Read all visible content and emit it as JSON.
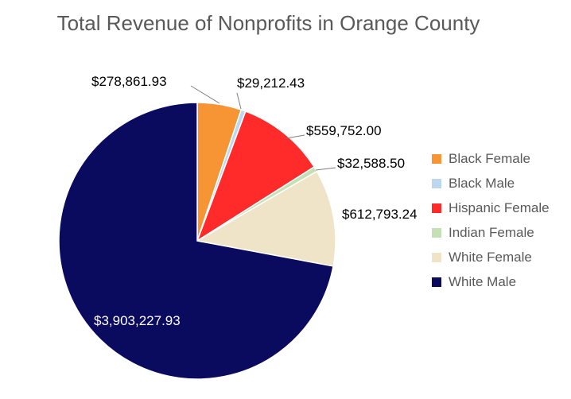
{
  "chart_data": {
    "type": "pie",
    "title": "Total Revenue of Nonprofits in Orange County",
    "legend_position": "right",
    "slices": [
      {
        "label": "Black Female",
        "value": 278861.93,
        "value_label": "$278,861.93",
        "color": "#F79433"
      },
      {
        "label": "Black Male",
        "value": 29212.43,
        "value_label": "$29,212.43",
        "color": "#BDD7EE"
      },
      {
        "label": "Hispanic Female",
        "value": 559752.0,
        "value_label": "$559,752.00",
        "color": "#FF2A2A"
      },
      {
        "label": "Indian Female",
        "value": 32588.5,
        "value_label": "$32,588.50",
        "color": "#C5E0B4"
      },
      {
        "label": "White Female",
        "value": 612793.24,
        "value_label": "$612,793.24",
        "color": "#EFE4C8"
      },
      {
        "label": "White Male",
        "value": 3903227.93,
        "value_label": "$3,903,227.93",
        "color": "#0A0A5E"
      }
    ]
  }
}
